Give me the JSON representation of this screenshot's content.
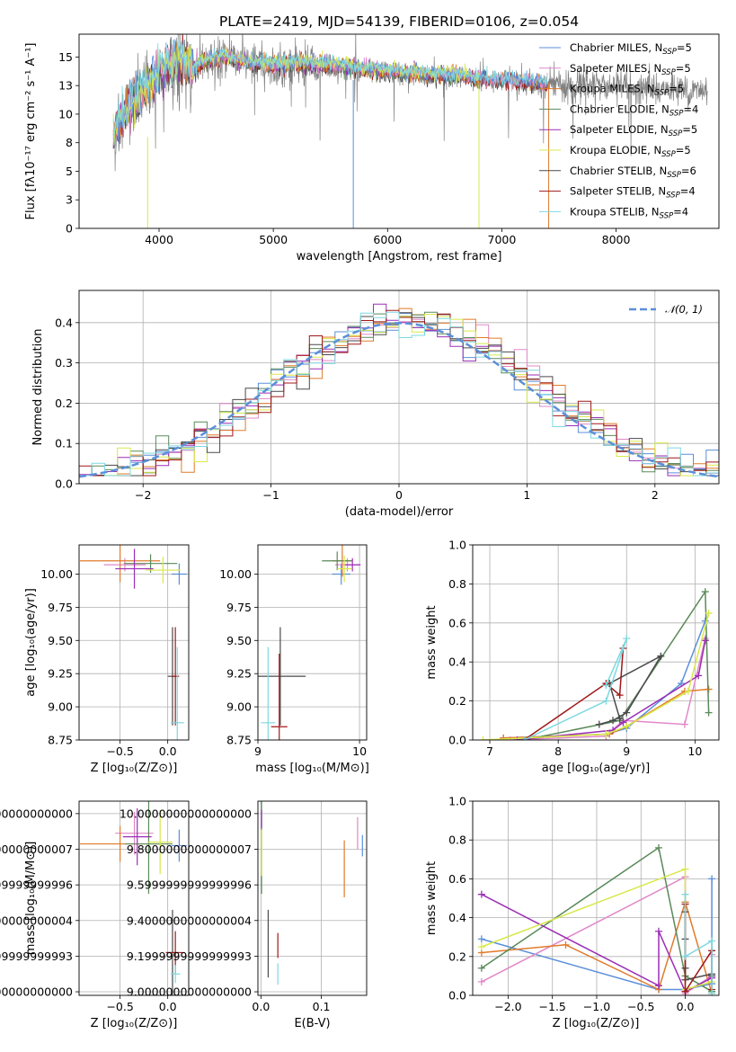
{
  "figure": {
    "title": "PLATE=2419, MJD=54139, FIBERID=0106, z=0.054"
  },
  "colors": {
    "Chabrier MILES": "#5b8fd9",
    "Salpeter MILES": "#e088c8",
    "Kroupa MILES": "#e07b2a",
    "Chabrier ELODIE": "#5a8a5a",
    "Salpeter ELODIE": "#9b2eb5",
    "Kroupa ELODIE": "#d8e84a",
    "Chabrier STELIB": "#4a4a4a",
    "Salpeter STELIB": "#a01818",
    "Kroupa STELIB": "#7ed8e0",
    "Normal": "#5b8fd9",
    "Data": "#808080"
  },
  "models": [
    {
      "name": "Chabrier MILES",
      "nssp": 5
    },
    {
      "name": "Salpeter MILES",
      "nssp": 5
    },
    {
      "name": "Kroupa MILES",
      "nssp": 5
    },
    {
      "name": "Chabrier ELODIE",
      "nssp": 4
    },
    {
      "name": "Salpeter ELODIE",
      "nssp": 5
    },
    {
      "name": "Kroupa ELODIE",
      "nssp": 5
    },
    {
      "name": "Chabrier STELIB",
      "nssp": 6
    },
    {
      "name": "Salpeter STELIB",
      "nssp": 4
    },
    {
      "name": "Kroupa STELIB",
      "nssp": 4
    }
  ],
  "chart_data": [
    {
      "id": "spectrum",
      "type": "line",
      "xlabel": "wavelength [Angstrom, rest frame]",
      "ylabel": "Flux [fλ10⁻¹⁷ erg cm⁻² s⁻¹ A⁻¹]",
      "xlim": [
        3300,
        8900
      ],
      "ylim": [
        0,
        17
      ],
      "xticks": [
        4000,
        5000,
        6000,
        7000,
        8000
      ],
      "yticks": [
        0.0,
        2.5,
        5.0,
        7.5,
        10.0,
        12.5,
        15.0
      ],
      "legend_position": "upper-right",
      "data_continuum": {
        "x": [
          3600,
          3700,
          3800,
          3900,
          4000,
          4100,
          4200,
          4300,
          4400,
          4600,
          4800,
          5000,
          5200,
          5400,
          5600,
          5800,
          6000,
          6200,
          6400,
          6600,
          6800,
          7000,
          7200,
          7400,
          7600,
          7800,
          8000,
          8200,
          8400,
          8600,
          8800
        ],
        "y": [
          8.0,
          10.0,
          11.2,
          12.2,
          13.5,
          14.2,
          14.4,
          13.8,
          14.6,
          14.8,
          14.4,
          14.1,
          14.3,
          14.2,
          14.0,
          13.8,
          13.6,
          13.4,
          13.3,
          13.2,
          13.0,
          12.9,
          12.8,
          12.6,
          12.5,
          12.5,
          12.4,
          12.3,
          12.2,
          12.1,
          12.0
        ]
      },
      "model_continuum": {
        "x": [
          3600,
          3700,
          3800,
          3900,
          4000,
          4100,
          4200,
          4300,
          4400,
          4600,
          4800,
          5000,
          5200,
          5400,
          5600,
          5800,
          6000,
          6200,
          6400,
          6600,
          6800,
          7000,
          7200,
          7400
        ],
        "y": [
          8.2,
          10.2,
          11.4,
          12.4,
          13.8,
          14.4,
          14.6,
          14.0,
          14.8,
          15.0,
          14.6,
          14.3,
          14.5,
          14.4,
          14.2,
          14.0,
          13.8,
          13.6,
          13.5,
          13.4,
          13.1,
          13.0,
          12.9,
          12.7
        ]
      }
    },
    {
      "id": "residuals",
      "type": "histogram",
      "xlabel": "(data-model)/error",
      "ylabel": "Normed distribution",
      "xlim": [
        -2.5,
        2.5
      ],
      "ylim": [
        0,
        0.48
      ],
      "xticks": [
        -2,
        -1,
        0,
        1,
        2
      ],
      "yticks": [
        0.0,
        0.1,
        0.2,
        0.3,
        0.4
      ],
      "grid": true,
      "legend_label": "𝒩(0, 1)",
      "legend_position": "upper-right",
      "bin_width": 0.1
    },
    {
      "id": "age-vs-z",
      "type": "errorbar",
      "xlabel": "Z [log₁₀(Z/Z⊙)]",
      "ylabel": "age  [log₁₀(age/yr)]",
      "xlim": [
        -0.93,
        0.22
      ],
      "ylim": [
        8.75,
        10.22
      ],
      "xticks": [
        -0.5,
        0.0
      ],
      "xtick_labels": [
        "−0.5",
        "0.0"
      ],
      "yticks": [
        8.75,
        9.0,
        9.25,
        9.5,
        9.75,
        10.0
      ],
      "grid": true,
      "points": [
        {
          "model": "Chabrier MILES",
          "x": 0.12,
          "y": 10.0,
          "xerr": 0.08,
          "yerr": 0.08
        },
        {
          "model": "Salpeter MILES",
          "x": -0.45,
          "y": 10.07,
          "xerr": 0.22,
          "yerr": 0.05
        },
        {
          "model": "Kroupa MILES",
          "x": -0.5,
          "y": 10.1,
          "xerr": 0.42,
          "yerr": 0.16
        },
        {
          "model": "Chabrier ELODIE",
          "x": -0.18,
          "y": 10.08,
          "xerr": 0.28,
          "yerr": 0.07
        },
        {
          "model": "Salpeter ELODIE",
          "x": -0.35,
          "y": 10.04,
          "xerr": 0.2,
          "yerr": 0.15
        },
        {
          "model": "Kroupa ELODIE",
          "x": -0.05,
          "y": 10.03,
          "xerr": 0.18,
          "yerr": 0.1
        },
        {
          "model": "Chabrier STELIB",
          "x": 0.05,
          "y": 9.23,
          "xerr": 0.05,
          "yerr": 0.37
        },
        {
          "model": "Salpeter STELIB",
          "x": 0.08,
          "y": 9.23,
          "xerr": 0.04,
          "yerr": 0.37
        },
        {
          "model": "Kroupa STELIB",
          "x": 0.1,
          "y": 8.88,
          "xerr": 0.07,
          "yerr": 0.57
        }
      ]
    },
    {
      "id": "age-vs-mass",
      "type": "errorbar",
      "xlabel": "mass [log₁₀(M/M⊙)]",
      "ylabel": "",
      "xlim": [
        9.0,
        10.07
      ],
      "ylim": [
        8.75,
        10.22
      ],
      "xticks": [
        9,
        10
      ],
      "yticks": [
        8.75,
        9.0,
        9.25,
        9.5,
        9.75,
        10.0
      ],
      "grid": true,
      "points": [
        {
          "model": "Chabrier MILES",
          "x": 9.82,
          "y": 10.0,
          "xerr": 0.09,
          "yerr": 0.08
        },
        {
          "model": "Salpeter MILES",
          "x": 9.88,
          "y": 10.07,
          "xerr": 0.12,
          "yerr": 0.05
        },
        {
          "model": "Kroupa MILES",
          "x": 9.83,
          "y": 10.1,
          "xerr": 0.1,
          "yerr": 0.12
        },
        {
          "model": "Chabrier ELODIE",
          "x": 9.78,
          "y": 10.1,
          "xerr": 0.15,
          "yerr": 0.07
        },
        {
          "model": "Salpeter ELODIE",
          "x": 9.93,
          "y": 10.07,
          "xerr": 0.08,
          "yerr": 0.05
        },
        {
          "model": "Kroupa ELODIE",
          "x": 9.85,
          "y": 10.04,
          "xerr": 0.07,
          "yerr": 0.1
        },
        {
          "model": "Chabrier STELIB",
          "x": 9.22,
          "y": 9.23,
          "xerr": 0.25,
          "yerr": 0.37
        },
        {
          "model": "Salpeter STELIB",
          "x": 9.21,
          "y": 8.85,
          "xerr": 0.08,
          "yerr": 0.55
        },
        {
          "model": "Kroupa STELIB",
          "x": 9.1,
          "y": 8.88,
          "xerr": 0.07,
          "yerr": 0.57
        }
      ]
    },
    {
      "id": "weight-vs-age",
      "type": "line",
      "xlabel": "age  [log₁₀(age/yr)]",
      "ylabel": "mass weight",
      "xlim": [
        6.75,
        10.35
      ],
      "ylim": [
        0,
        1.0
      ],
      "xticks": [
        7,
        8,
        9,
        10
      ],
      "yticks": [
        0.0,
        0.2,
        0.4,
        0.6,
        0.8,
        1.0
      ],
      "grid": true,
      "series": [
        {
          "model": "Chabrier MILES",
          "x": [
            7.2,
            8.7,
            9.0,
            9.8,
            10.15
          ],
          "y": [
            0.01,
            0.03,
            0.06,
            0.29,
            0.61
          ]
        },
        {
          "model": "Salpeter MILES",
          "x": [
            7.3,
            8.7,
            8.95,
            9.85,
            10.15
          ],
          "y": [
            0.0,
            0.02,
            0.1,
            0.08,
            0.52
          ]
        },
        {
          "model": "Kroupa MILES",
          "x": [
            7.2,
            8.75,
            9.0,
            9.85,
            10.2
          ],
          "y": [
            0.01,
            0.03,
            0.07,
            0.25,
            0.26
          ]
        },
        {
          "model": "Chabrier ELODIE",
          "x": [
            7.5,
            8.9,
            10.15,
            10.2
          ],
          "y": [
            0.0,
            0.1,
            0.76,
            0.14
          ]
        },
        {
          "model": "Salpeter ELODIE",
          "x": [
            7.4,
            8.8,
            8.95,
            10.05,
            10.15
          ],
          "y": [
            0.0,
            0.05,
            0.09,
            0.33,
            0.51
          ]
        },
        {
          "model": "Kroupa ELODIE",
          "x": [
            6.9,
            8.7,
            9.0,
            9.9,
            10.2
          ],
          "y": [
            0.0,
            0.03,
            0.07,
            0.25,
            0.65
          ]
        },
        {
          "model": "Chabrier STELIB",
          "x": [
            8.6,
            8.8,
            9.0,
            9.5,
            8.75,
            8.9
          ],
          "y": [
            0.08,
            0.1,
            0.14,
            0.43,
            0.29,
            0.11
          ]
        },
        {
          "model": "Salpeter STELIB",
          "x": [
            7.5,
            8.7,
            8.9,
            8.95
          ],
          "y": [
            0.0,
            0.29,
            0.23,
            0.47
          ]
        },
        {
          "model": "Kroupa STELIB",
          "x": [
            7.5,
            8.7,
            9.0,
            8.7
          ],
          "y": [
            0.0,
            0.2,
            0.52,
            0.28
          ]
        }
      ]
    },
    {
      "id": "mass-vs-z",
      "type": "errorbar",
      "xlabel": "Z [log₁₀(Z/Z⊙)]",
      "ylabel": "mass [log₁₀(M/M⊙)]",
      "xlim": [
        -0.93,
        0.22
      ],
      "ylim": [
        8.98,
        10.07
      ],
      "xticks": [
        -0.5,
        0.0
      ],
      "xtick_labels": [
        "−0.5",
        "0.0"
      ],
      "yticks": [
        9.0,
        9.2,
        9.4,
        9.6,
        9.8,
        10.0
      ],
      "grid": true,
      "points": [
        {
          "model": "Chabrier MILES",
          "x": 0.12,
          "y": 9.82,
          "xerr": 0.08,
          "yerr": 0.09
        },
        {
          "model": "Salpeter MILES",
          "x": -0.35,
          "y": 9.89,
          "xerr": 0.2,
          "yerr": 0.12
        },
        {
          "model": "Kroupa MILES",
          "x": -0.5,
          "y": 9.83,
          "xerr": 0.42,
          "yerr": 0.1
        },
        {
          "model": "Chabrier ELODIE",
          "x": -0.2,
          "y": 9.83,
          "xerr": 0.25,
          "yerr": 0.28
        },
        {
          "model": "Salpeter ELODIE",
          "x": -0.32,
          "y": 9.87,
          "xerr": 0.15,
          "yerr": 0.16
        },
        {
          "model": "Kroupa ELODIE",
          "x": -0.08,
          "y": 9.84,
          "xerr": 0.13,
          "yerr": 0.18
        },
        {
          "model": "Chabrier STELIB",
          "x": 0.05,
          "y": 9.22,
          "xerr": 0.07,
          "yerr": 0.24
        },
        {
          "model": "Salpeter STELIB",
          "x": 0.08,
          "y": 9.22,
          "xerr": 0.1,
          "yerr": 0.12
        },
        {
          "model": "Kroupa STELIB",
          "x": 0.08,
          "y": 9.1,
          "xerr": 0.05,
          "yerr": 0.05
        }
      ]
    },
    {
      "id": "mass-vs-ebv",
      "type": "errorbar",
      "xlabel": "E(B-V)",
      "ylabel": "",
      "xlim": [
        -0.005,
        0.175
      ],
      "ylim": [
        8.98,
        10.07
      ],
      "xticks": [
        0.0,
        0.1
      ],
      "yticks": [
        9.0,
        9.2,
        9.4,
        9.6,
        9.8,
        10.0
      ],
      "grid": true,
      "points": [
        {
          "model": "Chabrier MILES",
          "x": 0.168,
          "y": 9.82,
          "xerr": 0.0,
          "yerr": 0.06
        },
        {
          "model": "Salpeter MILES",
          "x": 0.16,
          "y": 9.89,
          "xerr": 0.0,
          "yerr": 0.09
        },
        {
          "model": "Kroupa MILES",
          "x": 0.138,
          "y": 9.69,
          "xerr": 0.0,
          "yerr": 0.16
        },
        {
          "model": "Chabrier ELODIE",
          "x": 0.001,
          "y": 9.83,
          "xerr": 0.0,
          "yerr": 0.28
        },
        {
          "model": "Salpeter ELODIE",
          "x": 0.001,
          "y": 9.97,
          "xerr": 0.0,
          "yerr": 0.05
        },
        {
          "model": "Kroupa ELODIE",
          "x": 0.001,
          "y": 9.78,
          "xerr": 0.0,
          "yerr": 0.13
        },
        {
          "model": "Chabrier STELIB",
          "x": 0.012,
          "y": 9.27,
          "xerr": 0.0,
          "yerr": 0.19
        },
        {
          "model": "Salpeter STELIB",
          "x": 0.028,
          "y": 9.26,
          "xerr": 0.0,
          "yerr": 0.07
        },
        {
          "model": "Kroupa STELIB",
          "x": 0.028,
          "y": 9.1,
          "xerr": 0.0,
          "yerr": 0.06
        }
      ]
    },
    {
      "id": "weight-vs-z",
      "type": "line",
      "xlabel": "Z [log₁₀(Z/Z⊙)]",
      "ylabel": "mass weight",
      "xlim": [
        -2.4,
        0.38
      ],
      "ylim": [
        0,
        1.0
      ],
      "xticks": [
        -2.0,
        -1.5,
        -1.0,
        -0.5,
        0.0
      ],
      "xtick_labels": [
        "−2.0",
        "−1.5",
        "−1.0",
        "−0.5",
        "0.0"
      ],
      "yticks": [
        0.0,
        0.2,
        0.4,
        0.6,
        0.8,
        1.0
      ],
      "grid": true,
      "series": [
        {
          "model": "Chabrier MILES",
          "x": [
            -2.3,
            -0.3,
            0.0,
            0.3,
            0.3
          ],
          "y": [
            0.29,
            0.03,
            0.03,
            0.06,
            0.6
          ]
        },
        {
          "model": "Salpeter MILES",
          "x": [
            -2.3,
            0.0,
            0.0,
            0.3,
            0.3
          ],
          "y": [
            0.07,
            0.61,
            0.01,
            0.1,
            0.21
          ]
        },
        {
          "model": "Kroupa MILES",
          "x": [
            -2.3,
            -1.35,
            -0.3,
            0.0,
            0.3
          ],
          "y": [
            0.22,
            0.26,
            0.03,
            0.48,
            0.01
          ]
        },
        {
          "model": "Chabrier ELODIE",
          "x": [
            -2.3,
            -0.3,
            0.0,
            0.3
          ],
          "y": [
            0.14,
            0.76,
            0.1,
            0.02
          ]
        },
        {
          "model": "Salpeter ELODIE",
          "x": [
            -2.3,
            -0.3,
            -0.3,
            0.0,
            0.3
          ],
          "y": [
            0.52,
            0.05,
            0.33,
            0.02,
            0.09
          ]
        },
        {
          "model": "Kroupa ELODIE",
          "x": [
            -2.3,
            0.0,
            0.0,
            0.3
          ],
          "y": [
            0.25,
            0.65,
            0.03,
            0.07
          ]
        },
        {
          "model": "Chabrier STELIB",
          "x": [
            0.0,
            0.0,
            0.0,
            0.0,
            0.3,
            0.3
          ],
          "y": [
            0.43,
            0.29,
            0.14,
            0.08,
            0.11,
            0.1
          ]
        },
        {
          "model": "Salpeter STELIB",
          "x": [
            0.0,
            0.0,
            0.3,
            0.3
          ],
          "y": [
            0.47,
            0.02,
            0.23,
            0.03
          ]
        },
        {
          "model": "Kroupa STELIB",
          "x": [
            0.0,
            0.0,
            0.3,
            0.3
          ],
          "y": [
            0.52,
            0.2,
            0.28,
            0.01
          ]
        }
      ]
    }
  ]
}
